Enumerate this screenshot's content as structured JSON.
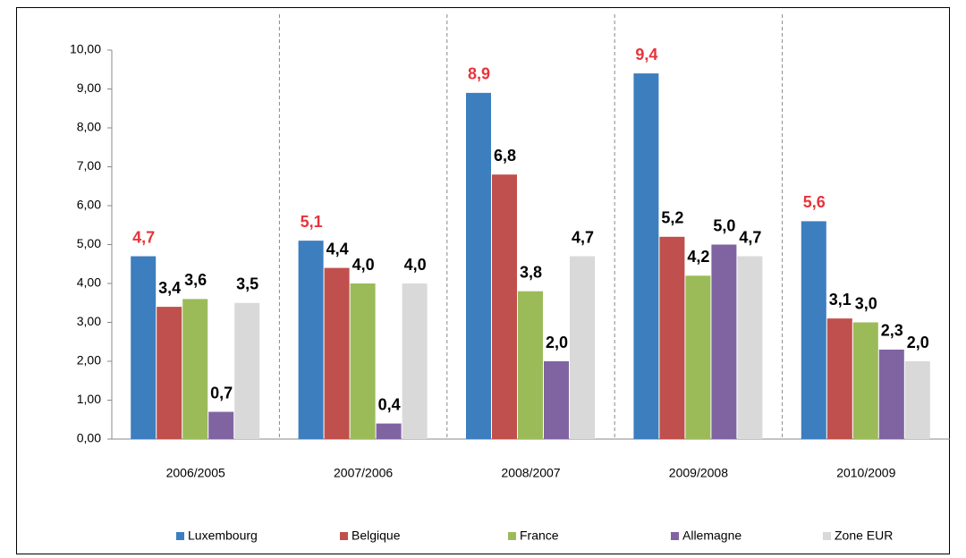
{
  "chart_data": {
    "type": "bar",
    "categories": [
      "2006/2005",
      "2007/2006",
      "2008/2007",
      "2009/2008",
      "2010/2009"
    ],
    "series": [
      {
        "name": "Luxembourg",
        "color": "#3d7ebf",
        "label_color": "#e8333a",
        "values": [
          4.7,
          5.1,
          8.9,
          9.4,
          5.6
        ],
        "value_labels": [
          "4,7",
          "5,1",
          "8,9",
          "9,4",
          "5,6"
        ]
      },
      {
        "name": "Belgique",
        "color": "#c0504d",
        "label_color": "#000000",
        "values": [
          3.4,
          4.4,
          6.8,
          5.2,
          3.1
        ],
        "value_labels": [
          "3,4",
          "4,4",
          "6,8",
          "5,2",
          "3,1"
        ]
      },
      {
        "name": "France",
        "color": "#9bbb59",
        "label_color": "#000000",
        "values": [
          3.6,
          4.0,
          3.8,
          4.2,
          3.0
        ],
        "value_labels": [
          "3,6",
          "4,0",
          "3,8",
          "4,2",
          "3,0"
        ]
      },
      {
        "name": "Allemagne",
        "color": "#8064a2",
        "label_color": "#000000",
        "values": [
          0.7,
          0.4,
          2.0,
          5.0,
          2.3
        ],
        "value_labels": [
          "0,7",
          "0,4",
          "2,0",
          "5,0",
          "2,3"
        ]
      },
      {
        "name": "Zone EUR",
        "color": "#d9d9d9",
        "label_color": "#000000",
        "values": [
          3.5,
          4.0,
          4.7,
          4.7,
          2.0
        ],
        "value_labels": [
          "3,5",
          "4,0",
          "4,7",
          "4,7",
          "2,0"
        ]
      }
    ],
    "ylim": [
      0,
      10
    ],
    "yticks": [
      {
        "value": 0,
        "label": "0,00"
      },
      {
        "value": 1,
        "label": "1,00"
      },
      {
        "value": 2,
        "label": "2,00"
      },
      {
        "value": 3,
        "label": "3,00"
      },
      {
        "value": 4,
        "label": "4,00"
      },
      {
        "value": 5,
        "label": "5,00"
      },
      {
        "value": 6,
        "label": "6,00"
      },
      {
        "value": 7,
        "label": "7,00"
      },
      {
        "value": 8,
        "label": "8,00"
      },
      {
        "value": 9,
        "label": "9,00"
      },
      {
        "value": 10,
        "label": "10,00"
      }
    ],
    "legend": "bottom"
  }
}
